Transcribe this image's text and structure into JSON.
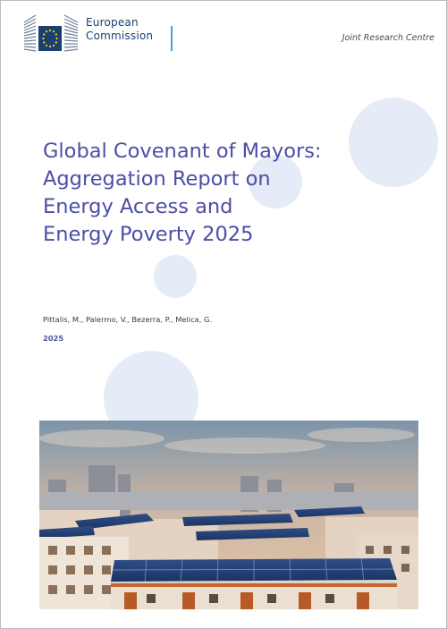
{
  "header": {
    "org_line1": "European",
    "org_line2": "Commission",
    "unit": "Joint Research Centre"
  },
  "logo": {
    "icon": "eu-flag-building-logo"
  },
  "cover": {
    "title_lines": [
      "Global Covenant of Mayors:",
      "Aggregation Report on",
      "Energy Access and",
      "Energy Poverty 2025"
    ],
    "authors": "Pittalis, M., Palermo, V., Bezerra, P., Melica, G.",
    "year": "2025"
  },
  "photo": {
    "icon": "rooftop-solar-panels-photo"
  },
  "colors": {
    "title": "#4c4ea4",
    "eu_blue": "#1a3f71",
    "eu_star": "#ffdd00",
    "accent_bar": "#3fa2d8",
    "circle": "#e6ebf8"
  }
}
